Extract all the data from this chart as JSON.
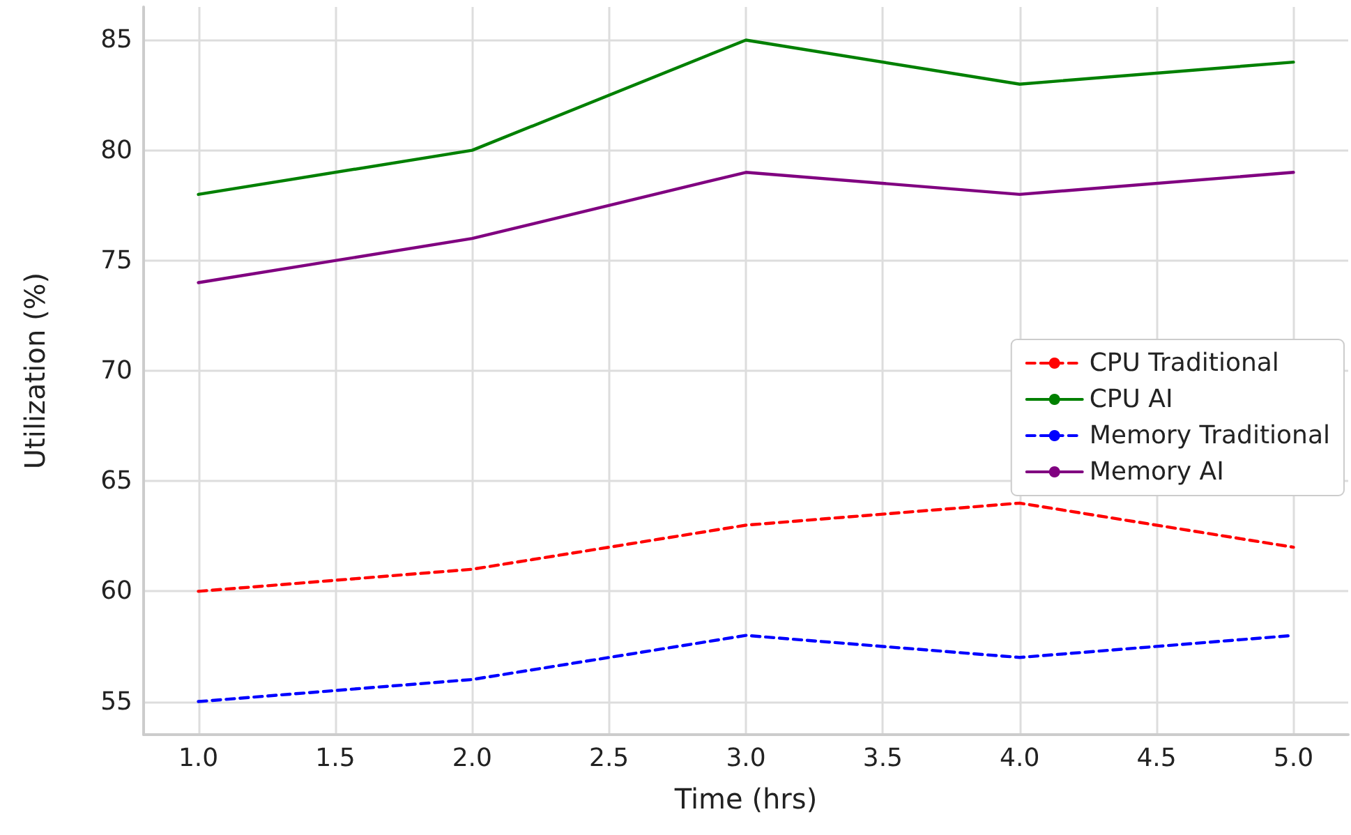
{
  "chart_data": {
    "type": "line",
    "xlabel": "Time (hrs)",
    "ylabel": "Utilization (%)",
    "x": [
      1,
      2,
      3,
      4,
      5
    ],
    "series": [
      {
        "name": "CPU Traditional",
        "color": "#ff0000",
        "line_style": "dashed",
        "values": [
          60,
          61,
          63,
          64,
          62
        ]
      },
      {
        "name": "CPU AI",
        "color": "#008000",
        "line_style": "solid",
        "values": [
          78,
          80,
          85,
          83,
          84
        ]
      },
      {
        "name": "Memory Traditional",
        "color": "#0000ff",
        "line_style": "dashed",
        "values": [
          55,
          56,
          58,
          57,
          58
        ]
      },
      {
        "name": "Memory AI",
        "color": "#800080",
        "line_style": "solid",
        "values": [
          74,
          76,
          79,
          78,
          79
        ]
      }
    ],
    "xlim": [
      0.8,
      5.2
    ],
    "xticks": [
      {
        "value": 1,
        "label": "1.0"
      },
      {
        "value": 1.5,
        "label": "1.5"
      },
      {
        "value": 2,
        "label": "2.0"
      },
      {
        "value": 2.5,
        "label": "2.5"
      },
      {
        "value": 3,
        "label": "3.0"
      },
      {
        "value": 3.5,
        "label": "3.5"
      },
      {
        "value": 4,
        "label": "4.0"
      },
      {
        "value": 4.5,
        "label": "4.5"
      },
      {
        "value": 5,
        "label": "5.0"
      }
    ],
    "ylim": [
      53.5,
      86.5
    ],
    "yticks": [
      55,
      60,
      65,
      70,
      75,
      80,
      85
    ],
    "grid": true,
    "legend": "right",
    "marker": "none"
  }
}
